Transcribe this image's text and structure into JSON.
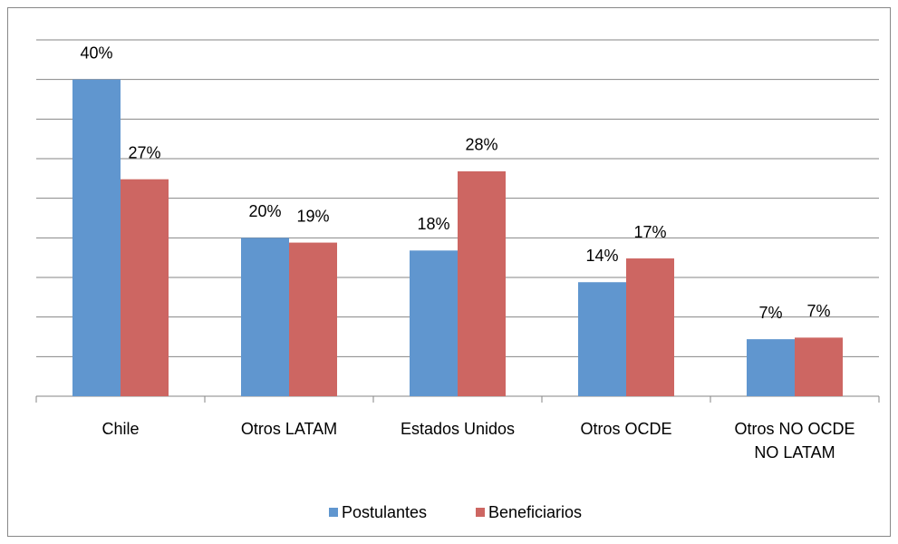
{
  "chart_data": {
    "type": "bar",
    "categories": [
      "Chile",
      "Otros LATAM",
      "Estados Unidos",
      "Otros OCDE",
      "Otros NO OCDE NO LATAM"
    ],
    "series": [
      {
        "name": "Postulantes",
        "color": "#6096cf",
        "values": [
          40,
          20,
          18.4,
          14.4,
          7.2
        ],
        "value_labels": [
          "40%",
          "20%",
          "18%",
          "14%",
          "7%"
        ]
      },
      {
        "name": "Beneficiarios",
        "color": "#cd6662",
        "values": [
          27.4,
          19.4,
          28.4,
          17.4,
          7.4
        ],
        "value_labels": [
          "27%",
          "19%",
          "28%",
          "17%",
          "7%"
        ]
      }
    ],
    "ylim": [
      0,
      45
    ],
    "yticks": [
      0,
      5,
      10,
      15,
      20,
      25,
      30,
      35,
      40,
      45
    ],
    "grid": true,
    "legend": "bottom"
  }
}
